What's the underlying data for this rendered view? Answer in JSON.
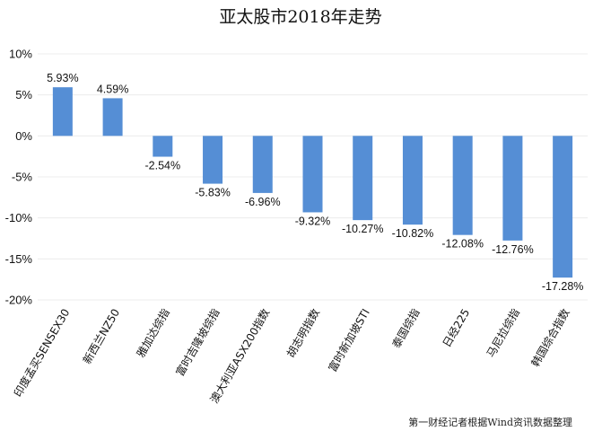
{
  "chart_data": {
    "type": "bar",
    "title": "亚太股市2018年走势",
    "xlabel": "",
    "ylabel": "",
    "categories": [
      "印度孟买SENSEX30",
      "新西兰NZ50",
      "雅加达综指",
      "富时吉隆坡综指",
      "澳大利亚ASX200指数",
      "胡志明指数",
      "富时新加坡STI",
      "泰国综指",
      "日经225",
      "马尼拉综指",
      "韩国综合指数"
    ],
    "values": [
      5.93,
      4.59,
      -2.54,
      -5.83,
      -6.96,
      -9.32,
      -10.27,
      -10.82,
      -12.08,
      -12.76,
      -17.28
    ],
    "value_labels": [
      "5.93%",
      "4.59%",
      "-2.54%",
      "-5.83%",
      "-6.96%",
      "-9.32%",
      "-10.27%",
      "-10.82%",
      "-12.08%",
      "-12.76%",
      "-17.28%"
    ],
    "ylim": [
      -20,
      10
    ],
    "yticks": [
      10,
      5,
      0,
      -5,
      -10,
      -15,
      -20
    ],
    "ytick_labels": [
      "10%",
      "5%",
      "0%",
      "-5%",
      "-10%",
      "-15%",
      "-20%"
    ],
    "grid": true,
    "legend": "none",
    "bar_color": "#558ed5",
    "source": "第一财经记者根据Wind资讯数据整理"
  }
}
